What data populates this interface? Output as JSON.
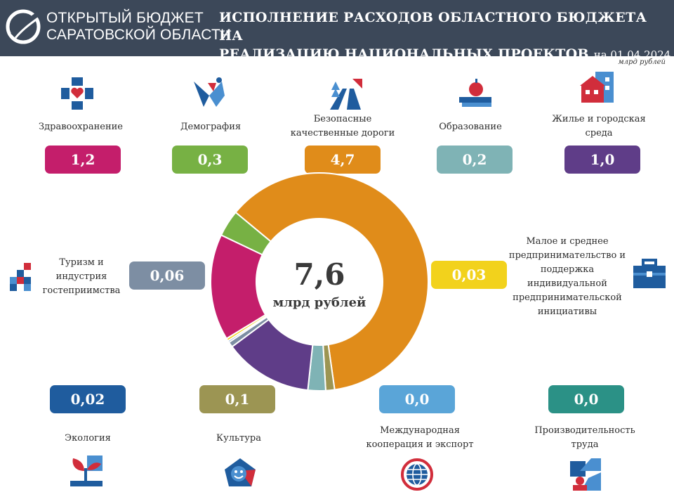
{
  "header": {
    "brand_line1": "ОТКРЫТЫЙ БЮДЖЕТ",
    "brand_line2": "САРАТОВСКОЙ ОБЛАСТИ",
    "title_line1": "ИСПОЛНЕНИЕ РАСХОДОВ ОБЛАСТНОГО БЮДЖЕТА НА",
    "title_line2": "РЕАЛИЗАЦИЮ НАЦИОНАЛЬНЫХ ПРОЕКТОВ",
    "date": "на 01.04.2024"
  },
  "units": "млрд рублей",
  "total": {
    "value": "7,6",
    "unit": "млрд рублей"
  },
  "projects": [
    {
      "label": "Здравоохранение",
      "value_text": "1,2",
      "color": "#c41e6b",
      "icon": "health-icon"
    },
    {
      "label": "Демография",
      "value_text": "0,3",
      "color": "#77b144",
      "icon": "demography-icon"
    },
    {
      "label": "Безопасные качественные дороги",
      "value_text": "4,7",
      "color": "#e08c1a",
      "icon": "roads-icon"
    },
    {
      "label": "Образование",
      "value_text": "0,2",
      "color": "#7fb3b5",
      "icon": "education-icon"
    },
    {
      "label": "Жилье и городская среда",
      "value_text": "1,0",
      "color": "#5f3d88",
      "icon": "housing-icon"
    },
    {
      "label": "Туризм и индустрия гостеприимства",
      "value_text": "0,06",
      "color": "#7d8ea3",
      "icon": "tourism-icon"
    },
    {
      "label": "Малое и среднее предпринимательство и поддержка индивидуальной предпринимательской инициативы",
      "value_text": "0,03",
      "color": "#f2d21c",
      "icon": "briefcase-icon"
    },
    {
      "label": "Экология",
      "value_text": "0,02",
      "color": "#1f5c9e",
      "icon": "ecology-icon"
    },
    {
      "label": "Культура",
      "value_text": "0,1",
      "color": "#9c9553",
      "icon": "culture-icon"
    },
    {
      "label": "Международная кооперация и экспорт",
      "value_text": "0,0",
      "color": "#5aa5d8",
      "icon": "globe-icon"
    },
    {
      "label": "Производительность труда",
      "value_text": "0,0",
      "color": "#2b9186",
      "icon": "productivity-icon"
    }
  ],
  "chart_data": {
    "type": "pie",
    "title": "Исполнение расходов областного бюджета на реализацию национальных проектов на 01.04.2024",
    "total": 7.6,
    "unit": "млрд рублей",
    "slices": [
      {
        "name": "Безопасные качественные дороги",
        "value": 4.7,
        "color": "#e08c1a"
      },
      {
        "name": "Культура",
        "value": 0.1,
        "color": "#9c9553"
      },
      {
        "name": "Образование",
        "value": 0.2,
        "color": "#7fb3b5"
      },
      {
        "name": "Жилье и городская среда",
        "value": 1.0,
        "color": "#5f3d88"
      },
      {
        "name": "Туризм и индустрия гостеприимства",
        "value": 0.06,
        "color": "#7d8ea3"
      },
      {
        "name": "Экология",
        "value": 0.02,
        "color": "#1f5c9e"
      },
      {
        "name": "Малое и среднее предпринимательство",
        "value": 0.03,
        "color": "#f2d21c"
      },
      {
        "name": "Здравоохранение",
        "value": 1.2,
        "color": "#c41e6b"
      },
      {
        "name": "Демография",
        "value": 0.3,
        "color": "#77b144"
      }
    ]
  }
}
